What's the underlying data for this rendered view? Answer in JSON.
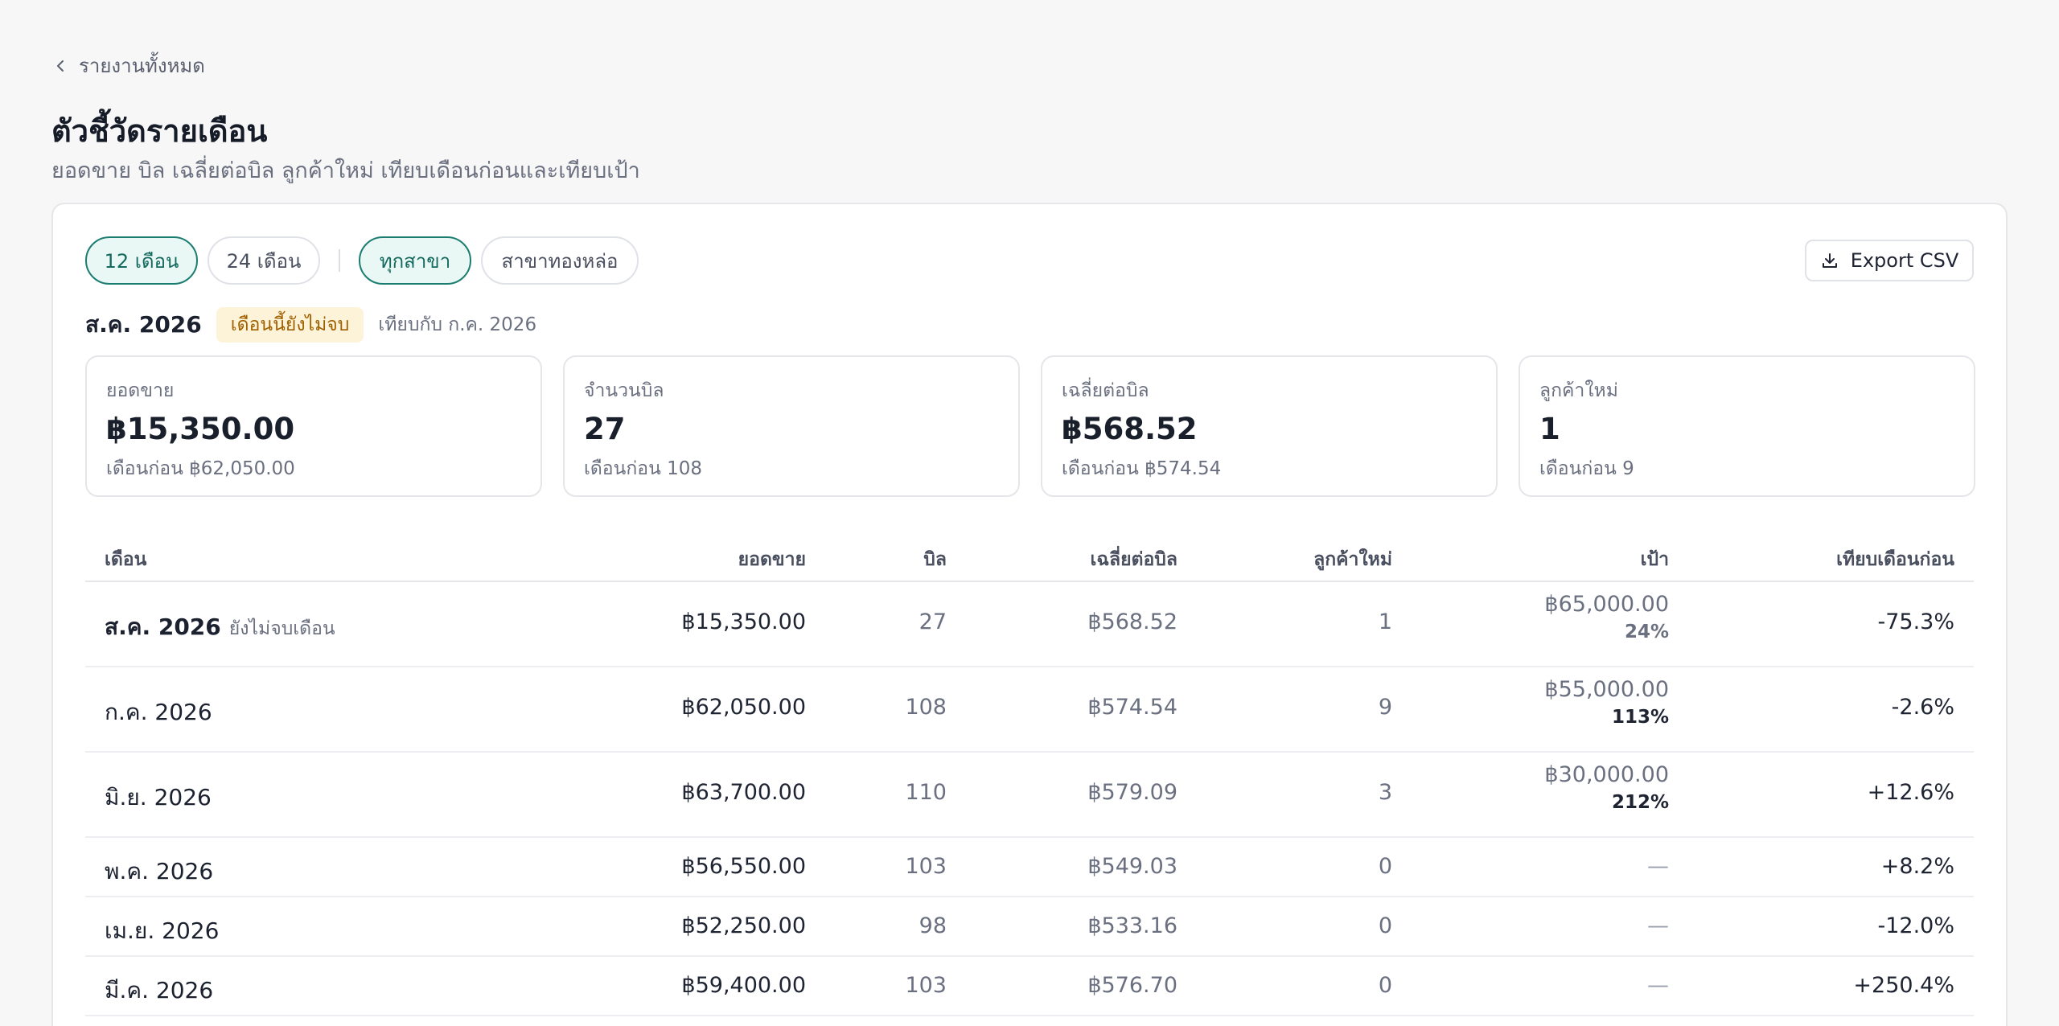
{
  "back": {
    "label": "รายงานทั้งหมด"
  },
  "page": {
    "title": "ตัวชี้วัดรายเดือน",
    "subtitle": "ยอดขาย บิล เฉลี่ยต่อบิล ลูกค้าใหม่ เทียบเดือนก่อนและเทียบเป้า"
  },
  "filters": {
    "range": [
      {
        "label": "12 เดือน",
        "active": true
      },
      {
        "label": "24 เดือน",
        "active": false
      }
    ],
    "branch": [
      {
        "label": "ทุกสาขา",
        "active": true
      },
      {
        "label": "สาขาทองหล่อ",
        "active": false
      }
    ],
    "export_label": "Export CSV"
  },
  "period": {
    "label": "ส.ค. 2026",
    "badge": "เดือนนี้ยังไม่จบ",
    "compare": "เทียบกับ ก.ค. 2026"
  },
  "kpis": [
    {
      "label": "ยอดขาย",
      "value": "฿15,350.00",
      "prev": "เดือนก่อน ฿62,050.00"
    },
    {
      "label": "จำนวนบิล",
      "value": "27",
      "prev": "เดือนก่อน 108"
    },
    {
      "label": "เฉลี่ยต่อบิล",
      "value": "฿568.52",
      "prev": "เดือนก่อน ฿574.54"
    },
    {
      "label": "ลูกค้าใหม่",
      "value": "1",
      "prev": "เดือนก่อน 9"
    }
  ],
  "table": {
    "headers": {
      "month": "เดือน",
      "sales": "ยอดขาย",
      "bills": "บิล",
      "avg": "เฉลี่ยต่อบิล",
      "new_customers": "ลูกค้าใหม่",
      "target": "เป้า",
      "mom": "เทียบเดือนก่อน"
    },
    "rows": [
      {
        "month": "ส.ค. 2026",
        "note": "ยังไม่จบเดือน",
        "sales": "฿15,350.00",
        "bills": "27",
        "avg": "฿568.52",
        "new_customers": "1",
        "target": "฿65,000.00",
        "target_pct": "24%",
        "mom": "-75.3%"
      },
      {
        "month": "ก.ค. 2026",
        "note": "",
        "sales": "฿62,050.00",
        "bills": "108",
        "avg": "฿574.54",
        "new_customers": "9",
        "target": "฿55,000.00",
        "target_pct": "113%",
        "mom": "-2.6%"
      },
      {
        "month": "มิ.ย. 2026",
        "note": "",
        "sales": "฿63,700.00",
        "bills": "110",
        "avg": "฿579.09",
        "new_customers": "3",
        "target": "฿30,000.00",
        "target_pct": "212%",
        "mom": "+12.6%"
      },
      {
        "month": "พ.ค. 2026",
        "note": "",
        "sales": "฿56,550.00",
        "bills": "103",
        "avg": "฿549.03",
        "new_customers": "0",
        "target": "—",
        "target_pct": "",
        "mom": "+8.2%"
      },
      {
        "month": "เม.ย. 2026",
        "note": "",
        "sales": "฿52,250.00",
        "bills": "98",
        "avg": "฿533.16",
        "new_customers": "0",
        "target": "—",
        "target_pct": "",
        "mom": "-12.0%"
      },
      {
        "month": "มี.ค. 2026",
        "note": "",
        "sales": "฿59,400.00",
        "bills": "103",
        "avg": "฿576.70",
        "new_customers": "0",
        "target": "—",
        "target_pct": "",
        "mom": "+250.4%"
      }
    ]
  }
}
